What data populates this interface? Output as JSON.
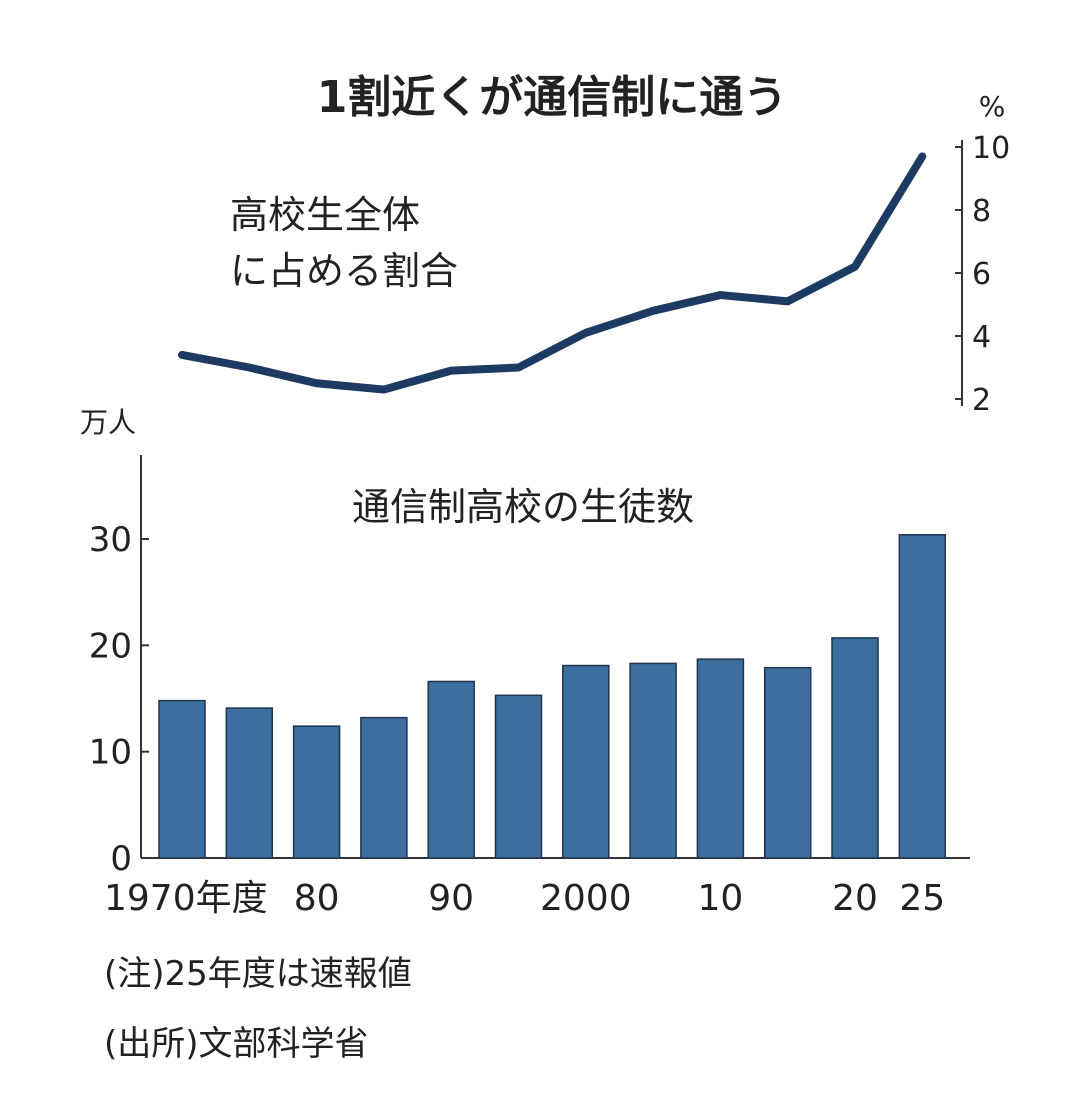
{
  "chart_data": [
    {
      "type": "line",
      "title": "1割近くが通信制に通う",
      "annotation": "高校生全体に占める割合",
      "annotation_lines": [
        "高校生全体",
        "に占める割合"
      ],
      "y_unit": "%",
      "x": [
        1970,
        1975,
        1980,
        1985,
        1990,
        1995,
        2000,
        2005,
        2010,
        2015,
        2020,
        2025
      ],
      "values": [
        3.4,
        3.0,
        2.5,
        2.3,
        2.9,
        3.0,
        4.1,
        4.8,
        5.3,
        5.1,
        6.2,
        9.7
      ],
      "ylim": [
        2,
        10
      ],
      "yticks": [
        2,
        4,
        6,
        8,
        10
      ],
      "y_axis_position": "right",
      "color": "#1d3a62"
    },
    {
      "type": "bar",
      "annotation": "通信制高校の生徒数",
      "y_unit": "万人",
      "categories": [
        1970,
        1975,
        1980,
        1985,
        1990,
        1995,
        2000,
        2005,
        2010,
        2015,
        2020,
        2025
      ],
      "values": [
        14.8,
        14.1,
        12.4,
        13.2,
        16.6,
        15.3,
        18.1,
        18.3,
        18.7,
        17.9,
        20.7,
        30.4
      ],
      "ylim": [
        0,
        37
      ],
      "yticks": [
        0,
        10,
        20,
        30
      ],
      "xtick_labels": [
        {
          "category": 1970,
          "label": "1970年度"
        },
        {
          "category": 1980,
          "label": "80"
        },
        {
          "category": 1990,
          "label": "90"
        },
        {
          "category": 2000,
          "label": "2000"
        },
        {
          "category": 2010,
          "label": "10"
        },
        {
          "category": 2020,
          "label": "20"
        },
        {
          "category": 2025,
          "label": "25"
        }
      ],
      "grid": false,
      "color": "#3d6f9e"
    }
  ],
  "notes": [
    "(注)25年度は速報値",
    "(出所)文部科学省"
  ]
}
